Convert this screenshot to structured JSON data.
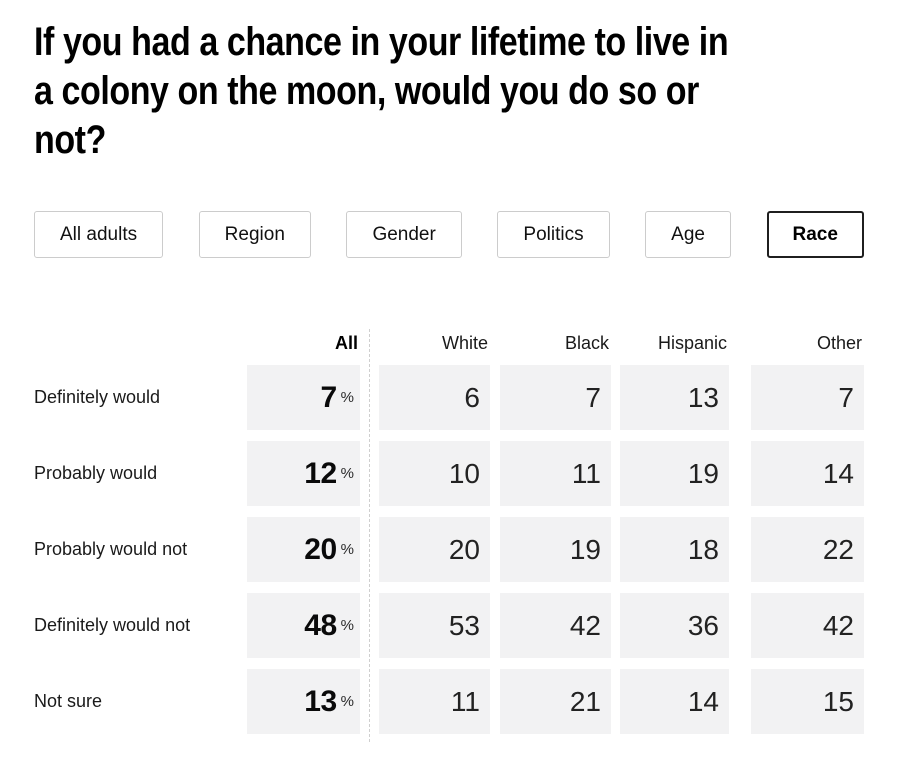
{
  "title": {
    "full": "If you had a chance in your lifetime to live in a colony on the moon, would you do so or not?",
    "lines": [
      "If you had a chance in your lifetime to live in",
      "a colony on the moon, would you do so or",
      "not?"
    ]
  },
  "filters": {
    "items": [
      {
        "label": "All adults",
        "selected": false
      },
      {
        "label": "Region",
        "selected": false
      },
      {
        "label": "Gender",
        "selected": false
      },
      {
        "label": "Politics",
        "selected": false
      },
      {
        "label": "Age",
        "selected": false
      },
      {
        "label": "Race",
        "selected": true
      }
    ]
  },
  "table": {
    "all_header": "All",
    "group_headers": [
      "White",
      "Black",
      "Hispanic",
      "Other"
    ],
    "percent_symbol": "%",
    "rows": [
      {
        "label": "Definitely would",
        "all": "7",
        "values": [
          "6",
          "7",
          "13",
          "7"
        ]
      },
      {
        "label": "Probably would",
        "all": "12",
        "values": [
          "10",
          "11",
          "19",
          "14"
        ]
      },
      {
        "label": "Probably would not",
        "all": "20",
        "values": [
          "20",
          "19",
          "18",
          "22"
        ]
      },
      {
        "label": "Definitely would not",
        "all": "48",
        "values": [
          "53",
          "42",
          "36",
          "42"
        ]
      },
      {
        "label": "Not sure",
        "all": "13",
        "values": [
          "11",
          "21",
          "14",
          "15"
        ]
      }
    ]
  },
  "colors": {
    "cell_background": "#f2f2f3",
    "selected_filter_border": "#1f1f1f",
    "filter_border": "#cccccc",
    "divider": "#cfcfcf",
    "title_text": "#000000",
    "body_text": "#1a1a1a"
  }
}
